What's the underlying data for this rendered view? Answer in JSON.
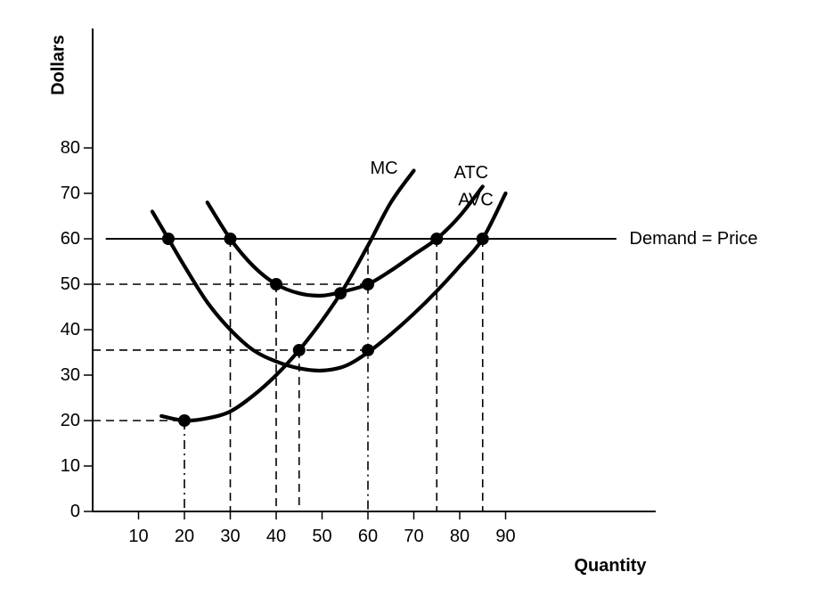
{
  "chart_data": {
    "type": "line",
    "title": "",
    "xlabel": "Quantity",
    "ylabel": "Dollars",
    "xlim": [
      0,
      120
    ],
    "ylim": [
      0,
      80
    ],
    "x_ticks": [
      10,
      20,
      30,
      40,
      50,
      60,
      70,
      80,
      90
    ],
    "y_ticks": [
      0,
      10,
      20,
      30,
      40,
      50,
      60,
      70,
      80
    ],
    "grid": false,
    "legend": "none",
    "series": [
      {
        "name": "MC",
        "line": "solid-thick",
        "x": [
          15,
          20,
          25,
          30,
          35,
          40,
          45,
          50,
          55,
          60,
          65,
          70
        ],
        "y": [
          21,
          20,
          20.5,
          22,
          25.5,
          30,
          35.5,
          42,
          49.5,
          58.5,
          68,
          75
        ]
      },
      {
        "name": "ATC",
        "line": "solid-thick",
        "x": [
          25,
          30,
          35,
          40,
          45,
          50,
          55,
          60,
          65,
          70,
          75,
          80,
          85
        ],
        "y": [
          68,
          60,
          54,
          50,
          48,
          47.5,
          48.5,
          50,
          53,
          56.5,
          60,
          65,
          71.5
        ]
      },
      {
        "name": "AVC",
        "line": "solid-thick",
        "x": [
          13,
          16.5,
          20,
          25,
          30,
          35,
          40,
          45,
          50,
          55,
          60,
          65,
          70,
          75,
          80,
          85,
          90
        ],
        "y": [
          66,
          60,
          54,
          46,
          40,
          35.5,
          33,
          31.5,
          31,
          32,
          35,
          39,
          43.5,
          48.5,
          54,
          60,
          70
        ]
      },
      {
        "name": "Demand = Price",
        "line": "solid-thin",
        "x": [
          3,
          114
        ],
        "y": [
          60,
          60
        ]
      }
    ],
    "points": [
      {
        "x": 16.5,
        "y": 60
      },
      {
        "x": 30,
        "y": 60
      },
      {
        "x": 40,
        "y": 50
      },
      {
        "x": 54,
        "y": 48
      },
      {
        "x": 60,
        "y": 50
      },
      {
        "x": 45,
        "y": 35.5
      },
      {
        "x": 60,
        "y": 35.5
      },
      {
        "x": 20,
        "y": 20
      },
      {
        "x": 75,
        "y": 60
      },
      {
        "x": 85,
        "y": 60
      }
    ],
    "guides_horizontal": [
      {
        "y": 50,
        "x_to": 60
      },
      {
        "y": 35.5,
        "x_to": 60
      },
      {
        "y": 20,
        "x_to": 20
      }
    ],
    "guides_vertical": [
      {
        "x": 20,
        "y_from": 20,
        "style": "dash-dot"
      },
      {
        "x": 30,
        "y_from": 60,
        "style": "dash"
      },
      {
        "x": 40,
        "y_from": 50,
        "style": "dash"
      },
      {
        "x": 45,
        "y_from": 35.5,
        "style": "dash"
      },
      {
        "x": 60,
        "y_from": 58.5,
        "style": "dash-dot"
      },
      {
        "x": 75,
        "y_from": 60,
        "style": "dash"
      },
      {
        "x": 85,
        "y_from": 60,
        "style": "dash"
      }
    ],
    "annotations": [
      {
        "text": "MC",
        "x": 63.5,
        "y": 75.5
      },
      {
        "text": "ATC",
        "x": 82.5,
        "y": 74.5
      },
      {
        "text": "AVC",
        "x": 83.5,
        "y": 68.5
      },
      {
        "text": "Demand = Price",
        "x": 117,
        "y": 60
      }
    ]
  }
}
